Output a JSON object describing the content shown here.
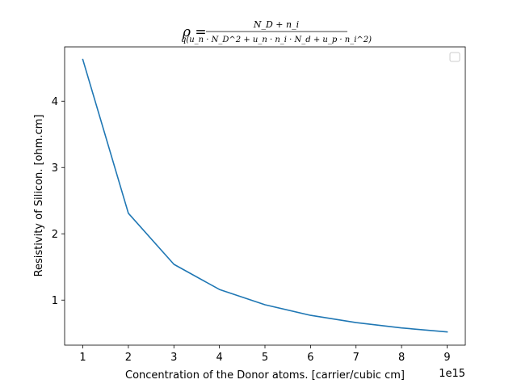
{
  "chart_data": {
    "type": "line",
    "title_lhs": "ρ =",
    "title_numerator": "N_D + n_i",
    "title_denominator": "q(u_n · N_D^2 + u_n · n_i · N_d + u_p · n_i^2)",
    "xlabel": "Concentration of the Donor atoms. [carrier/cubic cm]",
    "ylabel": "Resistivity of Silicon. [ohm.cm]",
    "x_offset_label": "1e15",
    "x": [
      1,
      2,
      3,
      4,
      5,
      6,
      7,
      8,
      9
    ],
    "x_ticks": [
      "1",
      "2",
      "3",
      "4",
      "5",
      "6",
      "7",
      "8",
      "9"
    ],
    "y_ticks": [
      "1",
      "2",
      "3",
      "4"
    ],
    "xlim": [
      0.6,
      9.4
    ],
    "ylim": [
      0.32,
      4.82
    ],
    "series": [
      {
        "color": "#1f77b4",
        "values": [
          4.63,
          2.31,
          1.54,
          1.16,
          0.93,
          0.77,
          0.66,
          0.58,
          0.52
        ]
      }
    ],
    "legend": {
      "placement": "upper-right",
      "entries": []
    },
    "grid": false
  }
}
